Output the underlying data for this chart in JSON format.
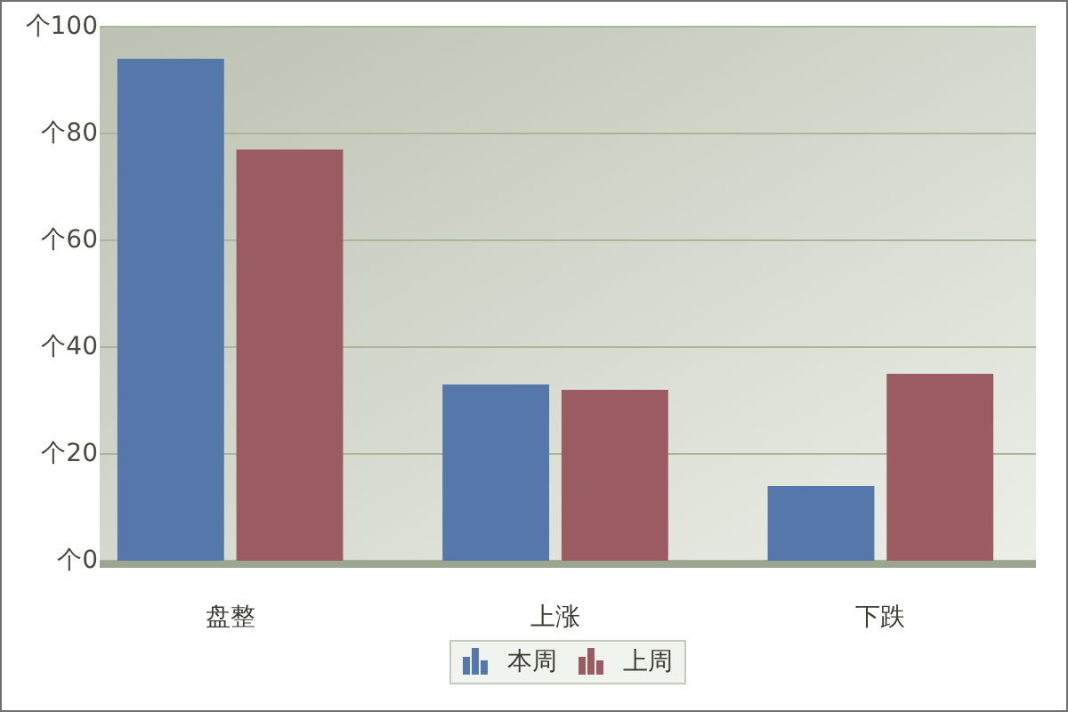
{
  "chart_data": {
    "type": "bar",
    "categories": [
      "盘整",
      "上涨",
      "下跌"
    ],
    "series": [
      {
        "name": "本周",
        "color": "#5677a9",
        "values": [
          94,
          33,
          14
        ]
      },
      {
        "name": "上周",
        "color": "#9b5b62",
        "values": [
          77,
          32,
          35
        ]
      }
    ],
    "ylabel": "个",
    "ylim": [
      0,
      100
    ],
    "yticks": [
      0,
      20,
      40,
      60,
      80,
      100
    ],
    "grid": "y",
    "legend": "bottom"
  }
}
